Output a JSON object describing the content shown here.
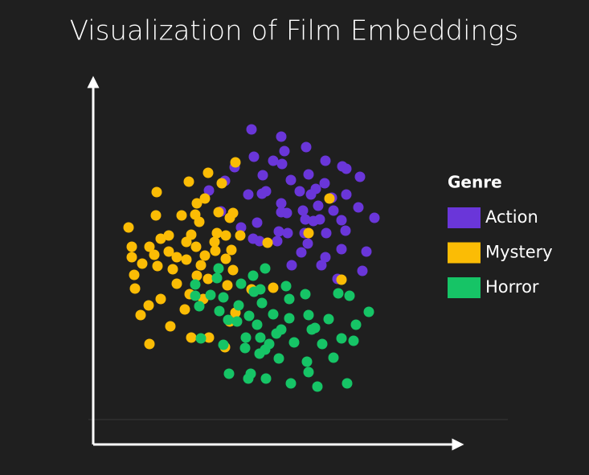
{
  "chart_data": {
    "type": "scatter",
    "title": "Visualization of Film Embeddings",
    "legend_title": "Genre",
    "legend_position": "right",
    "grid": false,
    "xlim": [
      0,
      45.9
    ],
    "ylim": [
      0,
      45.3
    ],
    "series": [
      {
        "name": "Action",
        "color": "#6a36d9",
        "x": [
          19.7,
          23.4,
          26.5,
          23.8,
          20.0,
          17.6,
          22.4,
          28.9,
          31.0,
          31.5,
          33.2,
          23.5,
          21.1,
          26.8,
          24.6,
          28.8,
          27.7,
          16.4,
          19.3,
          21.5,
          21.0,
          25.7,
          27.1,
          29.7,
          31.5,
          14.4,
          23.4,
          24.1,
          23.4,
          26.1,
          28.0,
          29.9,
          33.0,
          35.0,
          15.9,
          20.4,
          26.4,
          27.4,
          28.2,
          30.9,
          18.4,
          23.1,
          24.2,
          26.3,
          29.0,
          31.4,
          22.9,
          26.7,
          30.9,
          34.0,
          25.9,
          28.9,
          28.4,
          24.7,
          33.5,
          30.4,
          20.7,
          19.9
        ],
        "values": [
          39.2,
          38.3,
          37.0,
          36.5,
          35.8,
          34.5,
          35.3,
          35.3,
          34.6,
          34.3,
          33.3,
          34.9,
          33.5,
          33.6,
          32.9,
          32.5,
          31.8,
          32.8,
          31.1,
          31.5,
          31.2,
          31.5,
          31.1,
          30.7,
          31.1,
          31.6,
          30.0,
          28.8,
          28.9,
          29.1,
          29.7,
          29.1,
          29.5,
          28.2,
          29.0,
          27.6,
          28.0,
          27.8,
          28.0,
          27.9,
          27.0,
          26.5,
          26.3,
          26.3,
          26.3,
          26.6,
          25.3,
          25.0,
          24.3,
          24.0,
          23.9,
          23.3,
          22.3,
          22.3,
          21.6,
          20.6,
          25.3,
          25.6
        ]
      },
      {
        "name": "Mystery",
        "color": "#fbbc05",
        "x": [
          17.7,
          14.3,
          11.9,
          16.0,
          13.9,
          7.9,
          12.9,
          17.4,
          11.0,
          7.8,
          12.7,
          15.6,
          17.0,
          4.4,
          9.4,
          13.2,
          15.4,
          16.5,
          18.3,
          12.2,
          8.4,
          11.6,
          15.1,
          12.8,
          4.8,
          7.0,
          9.4,
          10.4,
          11.6,
          7.6,
          13.9,
          15.2,
          17.2,
          4.8,
          6.1,
          8.0,
          9.9,
          13.4,
          16.5,
          17.4,
          5.1,
          10.4,
          12.9,
          14.3,
          16.7,
          19.7,
          22.4,
          5.2,
          8.4,
          12.0,
          13.7,
          6.9,
          5.9,
          11.4,
          17.7,
          17.0,
          9.6,
          12.2,
          14.4,
          7.0,
          21.7,
          26.8,
          29.4,
          30.9,
          16.4
        ],
        "values": [
          35.1,
          33.8,
          32.7,
          32.5,
          30.6,
          31.4,
          30.0,
          28.8,
          28.5,
          28.5,
          28.6,
          28.9,
          28.2,
          27.0,
          26.0,
          27.7,
          26.3,
          26.0,
          26.0,
          26.1,
          25.6,
          25.2,
          25.2,
          24.6,
          24.6,
          24.6,
          24.0,
          23.3,
          23.0,
          23.6,
          23.5,
          24.1,
          24.2,
          23.3,
          22.5,
          22.2,
          21.8,
          22.3,
          23.1,
          21.7,
          21.1,
          20.0,
          21.0,
          20.6,
          19.8,
          19.3,
          19.5,
          19.4,
          18.1,
          18.7,
          18.1,
          17.3,
          16.1,
          16.8,
          16.4,
          15.3,
          14.7,
          13.3,
          13.3,
          12.5,
          25.1,
          26.3,
          30.6,
          20.5,
          12.1
        ]
      },
      {
        "name": "Horror",
        "color": "#16c466",
        "x": [
          21.4,
          15.6,
          12.7,
          15.4,
          19.9,
          18.4,
          24.0,
          12.7,
          14.6,
          16.2,
          20.0,
          20.8,
          24.4,
          26.4,
          30.5,
          31.9,
          13.2,
          18.1,
          21.0,
          15.7,
          19.4,
          22.4,
          24.4,
          26.8,
          34.3,
          16.8,
          20.4,
          17.9,
          23.4,
          27.2,
          29.3,
          32.7,
          13.4,
          19.0,
          20.8,
          22.8,
          27.6,
          30.9,
          16.2,
          21.9,
          25.0,
          28.5,
          32.4,
          18.9,
          21.4,
          23.1,
          26.6,
          29.9,
          16.9,
          19.6,
          19.3,
          21.5,
          24.6,
          26.8,
          27.9,
          31.6,
          20.7
        ],
        "values": [
          21.9,
          21.9,
          19.9,
          20.7,
          21.0,
          20.0,
          19.7,
          18.5,
          18.6,
          18.3,
          19.0,
          19.3,
          18.1,
          18.7,
          18.8,
          18.5,
          17.2,
          17.3,
          17.6,
          16.6,
          16.0,
          16.2,
          15.7,
          16.1,
          16.5,
          15.5,
          14.9,
          15.3,
          14.3,
          14.3,
          15.6,
          14.9,
          13.2,
          13.3,
          13.3,
          13.8,
          14.5,
          13.2,
          12.4,
          12.5,
          12.7,
          12.5,
          12.9,
          12.0,
          11.8,
          10.7,
          10.3,
          10.8,
          8.8,
          8.8,
          8.2,
          8.2,
          7.6,
          9.0,
          7.2,
          7.6,
          11.3
        ]
      }
    ]
  }
}
